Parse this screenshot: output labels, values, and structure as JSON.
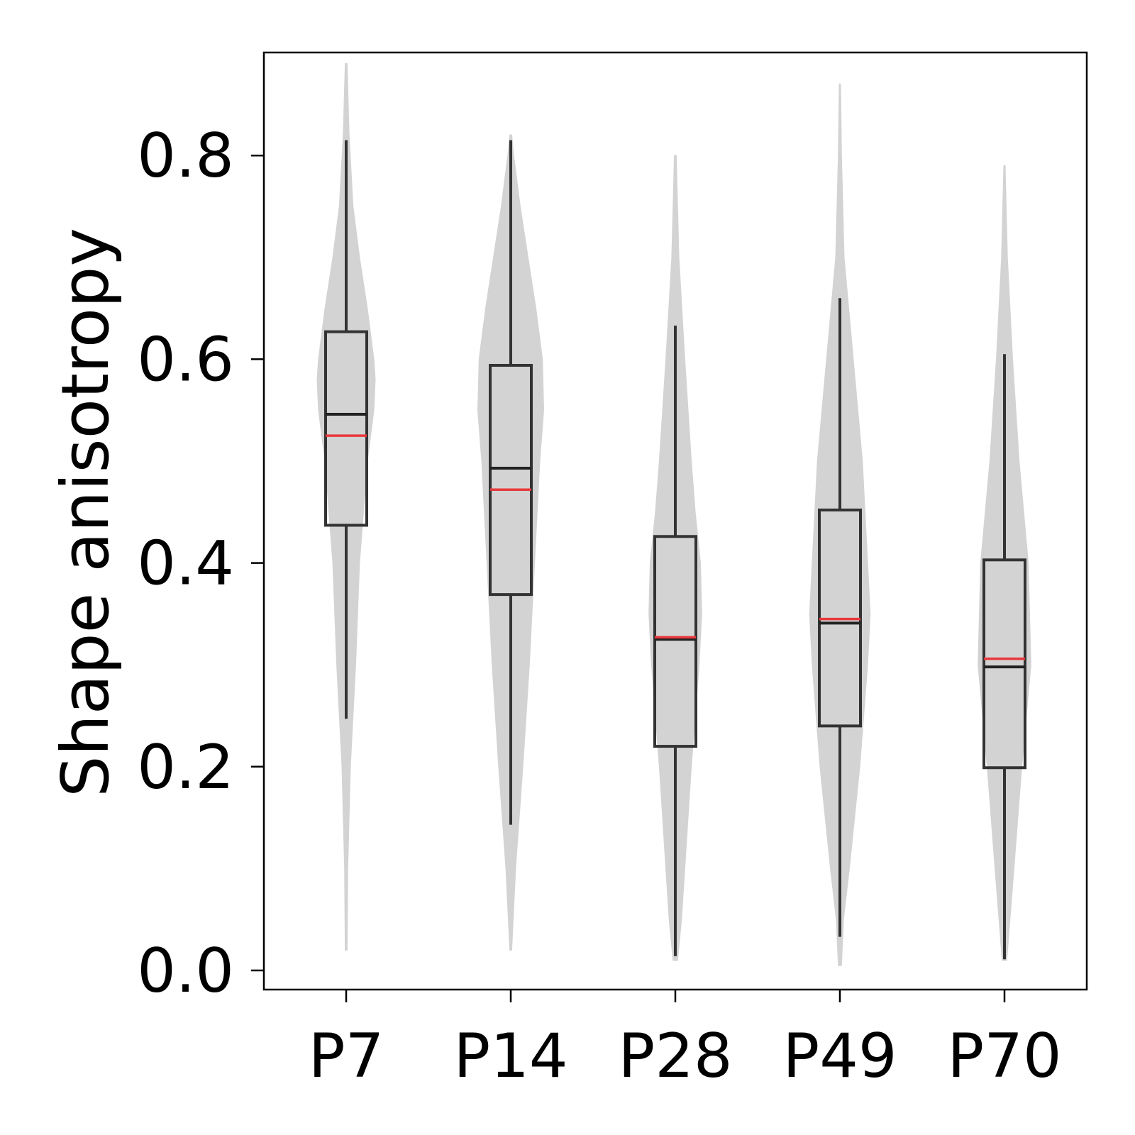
{
  "chart_data": {
    "type": "violin",
    "xlabel": "",
    "ylabel": "Shape anisotropy",
    "ylim": [
      -0.02,
      0.9
    ],
    "yticks": [
      0.0,
      0.2,
      0.4,
      0.6,
      0.8
    ],
    "ytick_labels": [
      "0.0",
      "0.2",
      "0.4",
      "0.6",
      "0.8"
    ],
    "categories": [
      "P7",
      "P14",
      "P28",
      "P49",
      "P70"
    ],
    "grid": false,
    "colors": {
      "violin": "#d3d3d3",
      "box": "#333333",
      "median": "#222222",
      "mean": "#e8383d",
      "axis": "#000000"
    },
    "groups": [
      {
        "category": "P7",
        "whisker_low": 0.247,
        "q1": 0.437,
        "median": 0.546,
        "q3": 0.627,
        "whisker_high": 0.815,
        "mean": 0.525,
        "violin": [
          [
            0.02,
            0.01
          ],
          [
            0.1,
            0.02
          ],
          [
            0.2,
            0.06
          ],
          [
            0.3,
            0.14
          ],
          [
            0.4,
            0.2
          ],
          [
            0.5,
            0.32
          ],
          [
            0.55,
            0.42
          ],
          [
            0.58,
            0.44
          ],
          [
            0.6,
            0.42
          ],
          [
            0.65,
            0.32
          ],
          [
            0.7,
            0.2
          ],
          [
            0.75,
            0.1
          ],
          [
            0.82,
            0.04
          ],
          [
            0.89,
            0.01
          ]
        ]
      },
      {
        "category": "P14",
        "whisker_low": 0.143,
        "q1": 0.369,
        "median": 0.493,
        "q3": 0.594,
        "whisker_high": 0.815,
        "mean": 0.472,
        "violin": [
          [
            0.02,
            0.01
          ],
          [
            0.1,
            0.07
          ],
          [
            0.2,
            0.18
          ],
          [
            0.3,
            0.28
          ],
          [
            0.4,
            0.36
          ],
          [
            0.5,
            0.44
          ],
          [
            0.55,
            0.5
          ],
          [
            0.6,
            0.48
          ],
          [
            0.65,
            0.38
          ],
          [
            0.7,
            0.26
          ],
          [
            0.75,
            0.14
          ],
          [
            0.8,
            0.04
          ],
          [
            0.82,
            0.01
          ]
        ]
      },
      {
        "category": "P28",
        "whisker_low": 0.014,
        "q1": 0.22,
        "median": 0.325,
        "q3": 0.426,
        "whisker_high": 0.633,
        "mean": 0.327,
        "violin": [
          [
            0.01,
            0.03
          ],
          [
            0.05,
            0.09
          ],
          [
            0.1,
            0.14
          ],
          [
            0.2,
            0.24
          ],
          [
            0.3,
            0.36
          ],
          [
            0.35,
            0.4
          ],
          [
            0.4,
            0.38
          ],
          [
            0.45,
            0.3
          ],
          [
            0.5,
            0.24
          ],
          [
            0.6,
            0.14
          ],
          [
            0.7,
            0.05
          ],
          [
            0.8,
            0.01
          ]
        ]
      },
      {
        "category": "P49",
        "whisker_low": 0.033,
        "q1": 0.24,
        "median": 0.341,
        "q3": 0.452,
        "whisker_high": 0.66,
        "mean": 0.345,
        "violin": [
          [
            0.005,
            0.02
          ],
          [
            0.05,
            0.05
          ],
          [
            0.1,
            0.14
          ],
          [
            0.2,
            0.3
          ],
          [
            0.3,
            0.42
          ],
          [
            0.35,
            0.46
          ],
          [
            0.4,
            0.42
          ],
          [
            0.5,
            0.34
          ],
          [
            0.6,
            0.2
          ],
          [
            0.7,
            0.06
          ],
          [
            0.8,
            0.02
          ],
          [
            0.87,
            0.005
          ]
        ]
      },
      {
        "category": "P70",
        "whisker_low": 0.011,
        "q1": 0.199,
        "median": 0.298,
        "q3": 0.403,
        "whisker_high": 0.605,
        "mean": 0.306,
        "violin": [
          [
            0.01,
            0.03
          ],
          [
            0.1,
            0.14
          ],
          [
            0.2,
            0.26
          ],
          [
            0.3,
            0.4
          ],
          [
            0.4,
            0.36
          ],
          [
            0.5,
            0.22
          ],
          [
            0.6,
            0.12
          ],
          [
            0.7,
            0.04
          ],
          [
            0.79,
            0.005
          ]
        ]
      }
    ]
  }
}
